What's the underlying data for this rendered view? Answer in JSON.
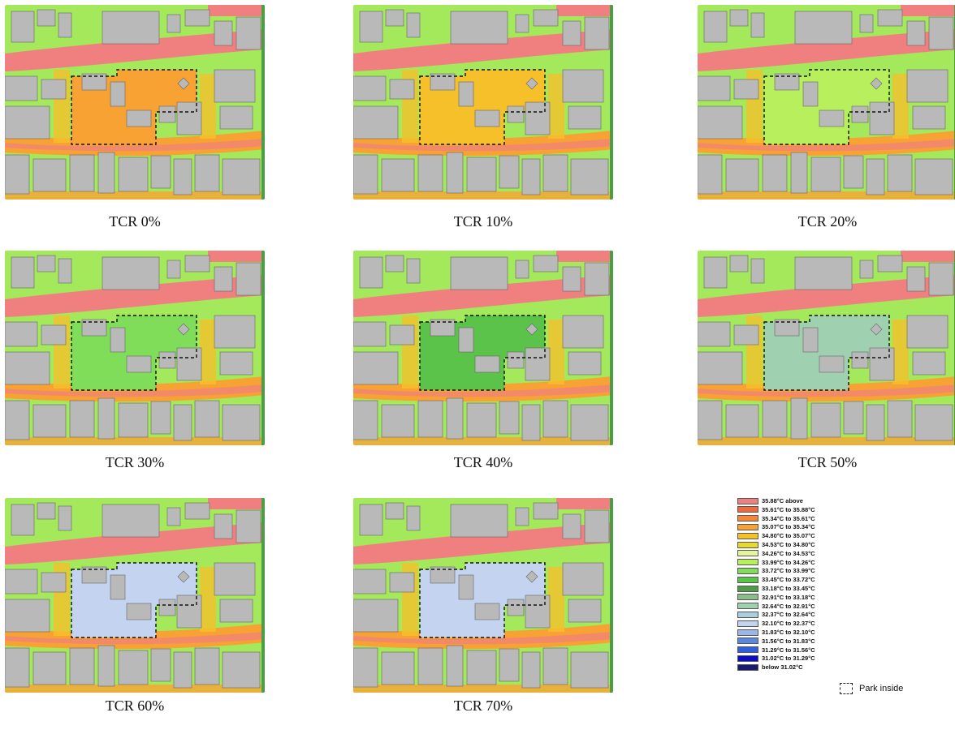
{
  "panels": [
    {
      "caption": "TCR  0%",
      "tcr": 0
    },
    {
      "caption": "TCR  10%",
      "tcr": 10
    },
    {
      "caption": "TCR  20%",
      "tcr": 20
    },
    {
      "caption": "TCR  30%",
      "tcr": 30
    },
    {
      "caption": "TCR  40%",
      "tcr": 40
    },
    {
      "caption": "TCR  50%",
      "tcr": 50
    },
    {
      "caption": "TCR  60%",
      "tcr": 60
    },
    {
      "caption": "TCR  70%",
      "tcr": 70
    }
  ],
  "legend": {
    "items": [
      {
        "label": "35.88°C above",
        "color": "#f08080"
      },
      {
        "label": "35.61°C to 35.88°C",
        "color": "#f26a3c"
      },
      {
        "label": "35.34°C to 35.61°C",
        "color": "#f5873a"
      },
      {
        "label": "35.07°C to 35.34°C",
        "color": "#f7a233"
      },
      {
        "label": "34.80°C to 35.07°C",
        "color": "#f5c02a"
      },
      {
        "label": "34.53°C to 34.80°C",
        "color": "#e8d92a"
      },
      {
        "label": "34.26°C to 34.53°C",
        "color": "#e4f59a"
      },
      {
        "label": "33.99°C to 34.26°C",
        "color": "#b8ef5c"
      },
      {
        "label": "33.72°C to 33.99°C",
        "color": "#7fdd5a"
      },
      {
        "label": "33.45°C to 33.72°C",
        "color": "#5bc24a"
      },
      {
        "label": "33.18°C to 33.45°C",
        "color": "#4b9e45"
      },
      {
        "label": "32.91°C to 33.18°C",
        "color": "#8bbd8a"
      },
      {
        "label": "32.64°C to 32.91°C",
        "color": "#9fd0b0"
      },
      {
        "label": "32.37°C to 32.64°C",
        "color": "#a8cfe0"
      },
      {
        "label": "32.10°C to 32.37°C",
        "color": "#c3d3f0"
      },
      {
        "label": "31.83°C to 32.10°C",
        "color": "#9cb8ea"
      },
      {
        "label": "31.56°C to 31.83°C",
        "color": "#5a88e0"
      },
      {
        "label": "31.29°C to 31.56°C",
        "color": "#2f5fe0"
      },
      {
        "label": "31.02°C to 31.29°C",
        "color": "#0b0bd0"
      },
      {
        "label": "below 31.02°C",
        "color": "#1a1a6e"
      }
    ],
    "park_label": "Park inside"
  },
  "colors": {
    "building": "#b9b9b9",
    "hot": "#f08080",
    "warm": "#f7a233",
    "yellow": "#f5c02a",
    "lightgreen": "#b8ef5c",
    "green": "#5bc24a",
    "cool": "#c3d3f0"
  }
}
